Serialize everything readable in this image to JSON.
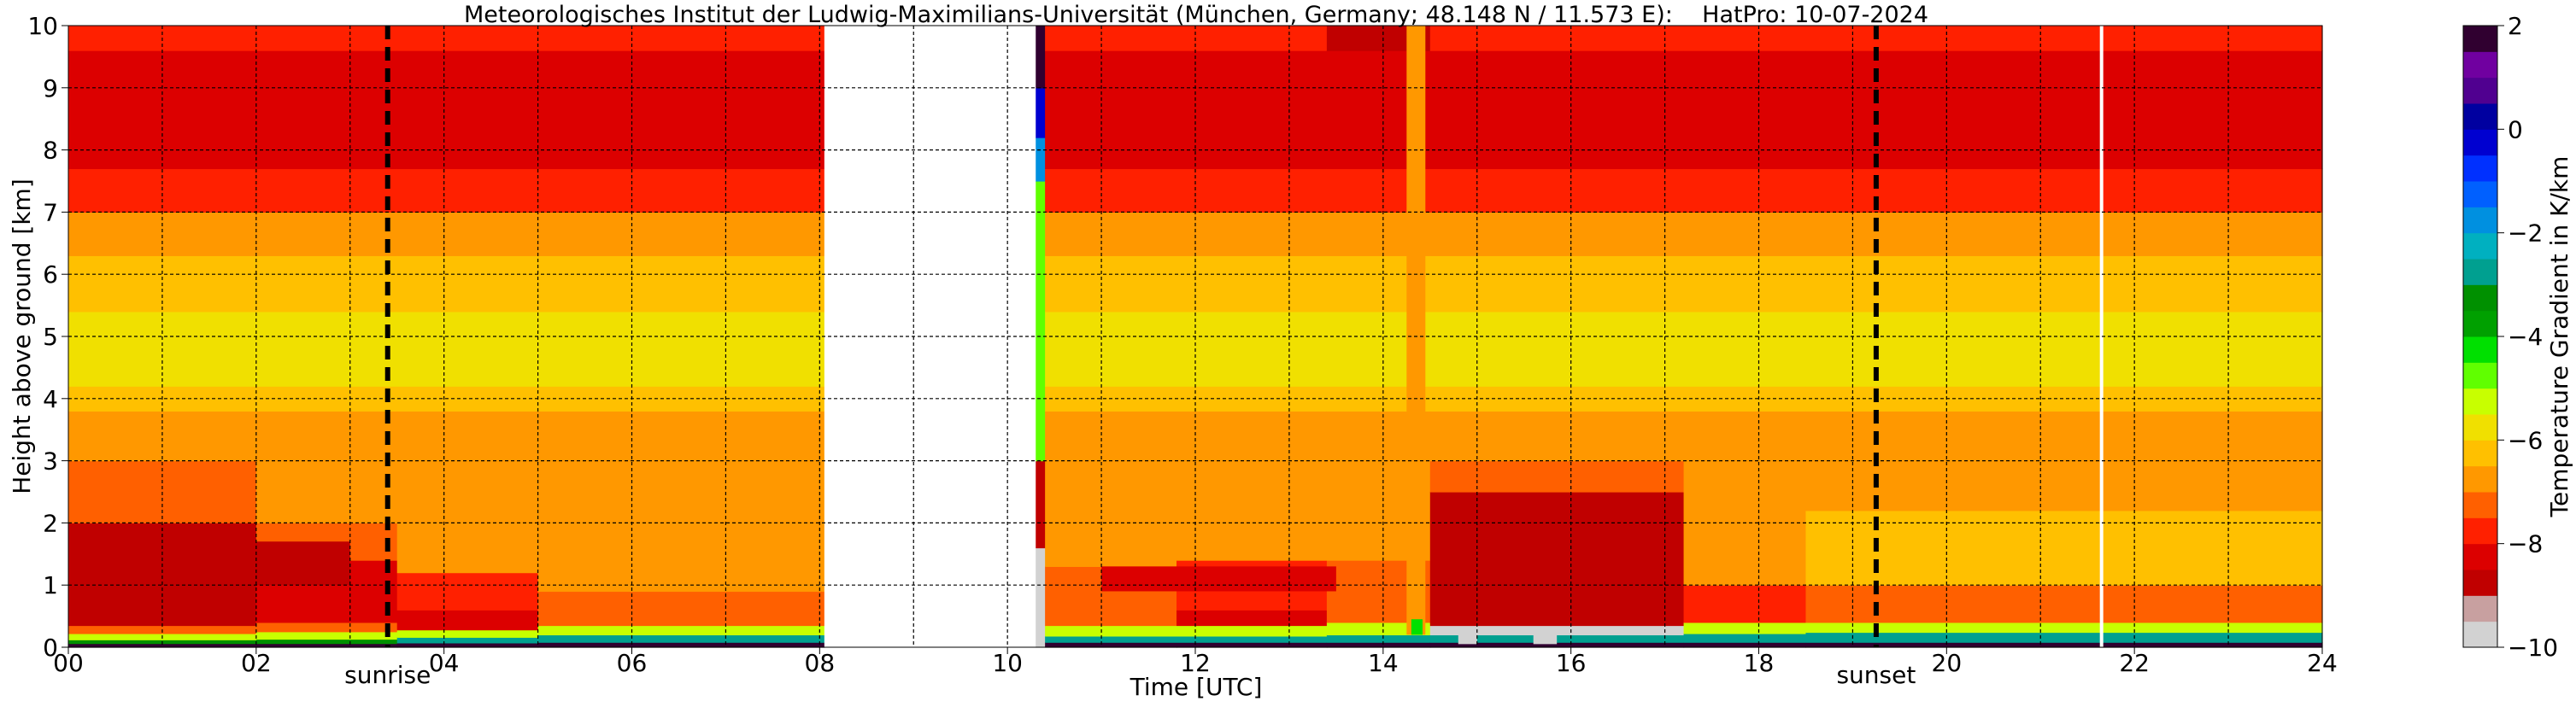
{
  "chart_data": {
    "type": "heatmap",
    "title": "Meteorologisches Institut der Ludwig-Maximilians-Universität (München, Germany; 48.148 N / 11.573 E):    HatPro: 10-07-2024",
    "xlabel": "Time [UTC]",
    "ylabel": "Height above ground [km]",
    "xlim": [
      0,
      24
    ],
    "ylim": [
      0,
      10
    ],
    "x_ticks": [
      0,
      2,
      4,
      6,
      8,
      10,
      12,
      14,
      16,
      18,
      20,
      22,
      24
    ],
    "x_tick_labels": [
      "00",
      "02",
      "04",
      "06",
      "08",
      "10",
      "12",
      "14",
      "16",
      "18",
      "20",
      "22",
      "24"
    ],
    "y_ticks": [
      0,
      1,
      2,
      3,
      4,
      5,
      6,
      7,
      8,
      9,
      10
    ],
    "y_tick_labels": [
      "0",
      "1",
      "2",
      "3",
      "4",
      "5",
      "6",
      "7",
      "8",
      "9",
      "10"
    ],
    "grid": true,
    "colorbar": {
      "label": "Temperature Gradient in K/km",
      "range": [
        -10,
        2
      ],
      "ticks": [
        2,
        0,
        -2,
        -4,
        -6,
        -8,
        -10
      ],
      "tick_labels": [
        "2",
        "0",
        "−2",
        "−4",
        "−6",
        "−8",
        "−10"
      ],
      "colors": [
        {
          "v": -10,
          "c": "#d2d2d2"
        },
        {
          "v": -9.5,
          "c": "#c8a0a0"
        },
        {
          "v": -9,
          "c": "#c00000"
        },
        {
          "v": -8.5,
          "c": "#dc0000"
        },
        {
          "v": -8,
          "c": "#ff2000"
        },
        {
          "v": -7.5,
          "c": "#ff6000"
        },
        {
          "v": -7,
          "c": "#ff9800"
        },
        {
          "v": -6.5,
          "c": "#ffc000"
        },
        {
          "v": -6,
          "c": "#f0e000"
        },
        {
          "v": -5.5,
          "c": "#c8ff00"
        },
        {
          "v": -5,
          "c": "#60ff00"
        },
        {
          "v": -4.5,
          "c": "#00e000"
        },
        {
          "v": -4,
          "c": "#00a000"
        },
        {
          "v": -3.5,
          "c": "#009000"
        },
        {
          "v": -3,
          "c": "#00a090"
        },
        {
          "v": -2.5,
          "c": "#00b0c0"
        },
        {
          "v": -2,
          "c": "#0090e0"
        },
        {
          "v": -1.5,
          "c": "#0060ff"
        },
        {
          "v": -1,
          "c": "#0030ff"
        },
        {
          "v": -0.5,
          "c": "#0000d0"
        },
        {
          "v": 0,
          "c": "#0000a0"
        },
        {
          "v": 0.5,
          "c": "#500090"
        },
        {
          "v": 1,
          "c": "#7000a0"
        },
        {
          "v": 1.5,
          "c": "#300030"
        },
        {
          "v": 2,
          "c": "#000000"
        }
      ]
    },
    "data_gap": {
      "start": 8.05,
      "end": 10.3
    },
    "white_line_at": 21.65,
    "events": [
      {
        "label": "sunrise",
        "time": 3.4
      },
      {
        "label": "sunset",
        "time": 19.25
      }
    ],
    "columns": [
      {
        "start": 0,
        "end": 2,
        "profile": [
          [
            0,
            0.06,
            1.8
          ],
          [
            0.06,
            0.12,
            -3.5
          ],
          [
            0.12,
            0.22,
            -5.5
          ],
          [
            0.22,
            0.35,
            -7.5
          ],
          [
            0.35,
            2.0,
            -8.6
          ],
          [
            2.0,
            3.0,
            -7.2
          ],
          [
            3.0,
            3.8,
            -6.6
          ],
          [
            3.8,
            4.2,
            -6.2
          ],
          [
            4.2,
            5.4,
            -5.6
          ],
          [
            5.4,
            6.3,
            -6.5
          ],
          [
            6.3,
            7.0,
            -7.0
          ],
          [
            7.0,
            7.7,
            -7.6
          ],
          [
            7.7,
            9.6,
            -8.1
          ],
          [
            9.6,
            10,
            -7.8
          ]
        ]
      },
      {
        "start": 2,
        "end": 3.5,
        "profile": [
          [
            0,
            0.06,
            1.8
          ],
          [
            0.06,
            0.13,
            -3.2
          ],
          [
            0.13,
            0.25,
            -5.5
          ],
          [
            0.25,
            0.4,
            -7.5
          ],
          [
            0.4,
            1.4,
            -8.5
          ],
          [
            1.4,
            2.0,
            -7.5
          ],
          [
            2.0,
            3.0,
            -7.0
          ],
          [
            3.0,
            3.8,
            -6.6
          ],
          [
            3.8,
            4.2,
            -6.2
          ],
          [
            4.2,
            5.4,
            -5.6
          ],
          [
            5.4,
            6.3,
            -6.5
          ],
          [
            6.3,
            7.0,
            -7.0
          ],
          [
            7.0,
            7.7,
            -7.6
          ],
          [
            7.7,
            9.6,
            -8.1
          ],
          [
            9.6,
            10,
            -7.8
          ]
        ]
      },
      {
        "start": 3.5,
        "end": 5,
        "profile": [
          [
            0,
            0.07,
            1.8
          ],
          [
            0.07,
            0.16,
            -3.0
          ],
          [
            0.16,
            0.28,
            -5.5
          ],
          [
            0.28,
            0.6,
            -8.3
          ],
          [
            0.6,
            1.2,
            -7.6
          ],
          [
            1.2,
            3.0,
            -7.0
          ],
          [
            3.0,
            3.8,
            -6.6
          ],
          [
            3.8,
            4.2,
            -6.2
          ],
          [
            4.2,
            5.4,
            -5.6
          ],
          [
            5.4,
            6.3,
            -6.5
          ],
          [
            6.3,
            7.0,
            -7.0
          ],
          [
            7.0,
            7.7,
            -7.6
          ],
          [
            7.7,
            9.6,
            -8.1
          ],
          [
            9.6,
            10,
            -7.8
          ]
        ]
      },
      {
        "start": 5,
        "end": 8.05,
        "profile": [
          [
            0,
            0.08,
            1.8
          ],
          [
            0.08,
            0.2,
            -3.0
          ],
          [
            0.2,
            0.35,
            -5.5
          ],
          [
            0.35,
            0.9,
            -7.2
          ],
          [
            0.9,
            3.0,
            -6.9
          ],
          [
            3.0,
            3.8,
            -6.6
          ],
          [
            3.8,
            4.2,
            -6.2
          ],
          [
            4.2,
            5.4,
            -5.6
          ],
          [
            5.4,
            6.3,
            -6.5
          ],
          [
            6.3,
            7.0,
            -7.0
          ],
          [
            7.0,
            7.7,
            -7.6
          ],
          [
            7.7,
            9.6,
            -8.4
          ],
          [
            9.6,
            10,
            -8.0
          ]
        ]
      },
      {
        "start": 10.3,
        "end": 10.4,
        "profile": [
          [
            0,
            1.6,
            -9.8
          ],
          [
            1.6,
            3.0,
            -8.6
          ],
          [
            3.0,
            5.0,
            -5.0
          ],
          [
            5.0,
            7.5,
            -4.6
          ],
          [
            7.5,
            8.2,
            -2.0
          ],
          [
            8.2,
            9.0,
            -0.5
          ],
          [
            9.0,
            10,
            1.8
          ]
        ]
      },
      {
        "start": 10.4,
        "end": 11.8,
        "profile": [
          [
            0,
            0.08,
            1.8
          ],
          [
            0.08,
            0.18,
            -3.0
          ],
          [
            0.18,
            0.35,
            -5.5
          ],
          [
            0.35,
            1.3,
            -7.2
          ],
          [
            1.3,
            3.0,
            -6.9
          ],
          [
            3.0,
            3.8,
            -6.6
          ],
          [
            3.8,
            4.2,
            -6.2
          ],
          [
            4.2,
            5.4,
            -5.6
          ],
          [
            5.4,
            6.3,
            -6.5
          ],
          [
            6.3,
            7.0,
            -7.0
          ],
          [
            7.0,
            7.7,
            -7.6
          ],
          [
            7.7,
            9.6,
            -8.1
          ],
          [
            9.6,
            10,
            -7.8
          ]
        ]
      },
      {
        "start": 11.8,
        "end": 13.4,
        "profile": [
          [
            0,
            0.08,
            1.8
          ],
          [
            0.08,
            0.18,
            -3.0
          ],
          [
            0.18,
            0.35,
            -5.5
          ],
          [
            0.35,
            0.6,
            -8.3
          ],
          [
            0.6,
            1.4,
            -7.8
          ],
          [
            1.4,
            3.0,
            -7.0
          ],
          [
            3.0,
            3.8,
            -6.6
          ],
          [
            3.8,
            4.2,
            -6.2
          ],
          [
            4.2,
            5.4,
            -5.6
          ],
          [
            5.4,
            6.3,
            -6.5
          ],
          [
            6.3,
            7.0,
            -7.0
          ],
          [
            7.0,
            7.7,
            -7.6
          ],
          [
            7.7,
            9.6,
            -8.1
          ],
          [
            9.6,
            10,
            -7.8
          ]
        ]
      },
      {
        "start": 13.4,
        "end": 14.5,
        "profile": [
          [
            0,
            0.08,
            1.8
          ],
          [
            0.08,
            0.2,
            -3.0
          ],
          [
            0.2,
            0.4,
            -5.5
          ],
          [
            0.4,
            1.4,
            -7.3
          ],
          [
            1.4,
            3.0,
            -7.0
          ],
          [
            3.0,
            3.8,
            -6.6
          ],
          [
            3.8,
            4.2,
            -6.2
          ],
          [
            4.2,
            5.4,
            -5.6
          ],
          [
            5.4,
            6.3,
            -6.5
          ],
          [
            6.3,
            7.0,
            -7.0
          ],
          [
            7.0,
            7.7,
            -7.6
          ],
          [
            7.7,
            9.6,
            -8.3
          ],
          [
            9.6,
            10,
            -8.6
          ]
        ]
      },
      {
        "start": 14.5,
        "end": 17.2,
        "profile": [
          [
            0,
            0.08,
            1.8
          ],
          [
            0.08,
            0.2,
            -3.0
          ],
          [
            0.2,
            0.35,
            -9.6
          ],
          [
            0.35,
            2.5,
            -8.8
          ],
          [
            2.5,
            3.0,
            -7.5
          ],
          [
            3.0,
            3.8,
            -6.6
          ],
          [
            3.8,
            4.2,
            -6.2
          ],
          [
            4.2,
            5.4,
            -5.6
          ],
          [
            5.4,
            6.3,
            -6.5
          ],
          [
            6.3,
            7.0,
            -7.0
          ],
          [
            7.0,
            7.7,
            -7.6
          ],
          [
            7.7,
            9.6,
            -8.1
          ],
          [
            9.6,
            10,
            -7.8
          ]
        ]
      },
      {
        "start": 17.2,
        "end": 18.5,
        "profile": [
          [
            0,
            0.08,
            1.8
          ],
          [
            0.08,
            0.22,
            -3.0
          ],
          [
            0.22,
            0.4,
            -5.5
          ],
          [
            0.4,
            1.0,
            -8.0
          ],
          [
            1.0,
            3.0,
            -6.9
          ],
          [
            3.0,
            3.8,
            -6.6
          ],
          [
            3.8,
            4.2,
            -6.2
          ],
          [
            4.2,
            5.4,
            -5.6
          ],
          [
            5.4,
            6.3,
            -6.5
          ],
          [
            6.3,
            7.0,
            -7.0
          ],
          [
            7.0,
            7.7,
            -7.6
          ],
          [
            7.7,
            9.6,
            -8.1
          ],
          [
            9.6,
            10,
            -7.8
          ]
        ]
      },
      {
        "start": 18.5,
        "end": 24,
        "profile": [
          [
            0,
            0.08,
            1.8
          ],
          [
            0.08,
            0.24,
            -3.0
          ],
          [
            0.24,
            0.4,
            -5.5
          ],
          [
            0.4,
            1.0,
            -7.2
          ],
          [
            1.0,
            2.2,
            -6.3
          ],
          [
            2.2,
            3.0,
            -6.8
          ],
          [
            3.0,
            3.8,
            -6.6
          ],
          [
            3.8,
            4.2,
            -6.2
          ],
          [
            4.2,
            5.4,
            -5.6
          ],
          [
            5.4,
            6.3,
            -6.5
          ],
          [
            6.3,
            7.0,
            -7.0
          ],
          [
            7.0,
            7.7,
            -7.6
          ],
          [
            7.7,
            9.6,
            -8.1
          ],
          [
            9.6,
            10,
            -7.8
          ]
        ]
      }
    ],
    "patches": [
      {
        "x0": 1.0,
        "x1": 3.0,
        "y0": 1.0,
        "y1": 1.7,
        "value": -9.0
      },
      {
        "x0": 11.0,
        "x1": 13.5,
        "y0": 0.9,
        "y1": 1.3,
        "value": -8.2
      },
      {
        "x0": 14.25,
        "x1": 14.45,
        "y0": 0.2,
        "y1": 10,
        "value": -6.8
      },
      {
        "x0": 14.3,
        "x1": 14.42,
        "y0": 0.2,
        "y1": 0.45,
        "value": -4.5
      },
      {
        "x0": 15.0,
        "x1": 16.7,
        "y0": 1.8,
        "y1": 2.3,
        "value": -8.6
      },
      {
        "x0": 14.8,
        "x1": 15.0,
        "y0": 0.05,
        "y1": 0.3,
        "value": -9.8
      },
      {
        "x0": 15.6,
        "x1": 15.85,
        "y0": 0.05,
        "y1": 0.3,
        "value": -9.8
      }
    ]
  }
}
